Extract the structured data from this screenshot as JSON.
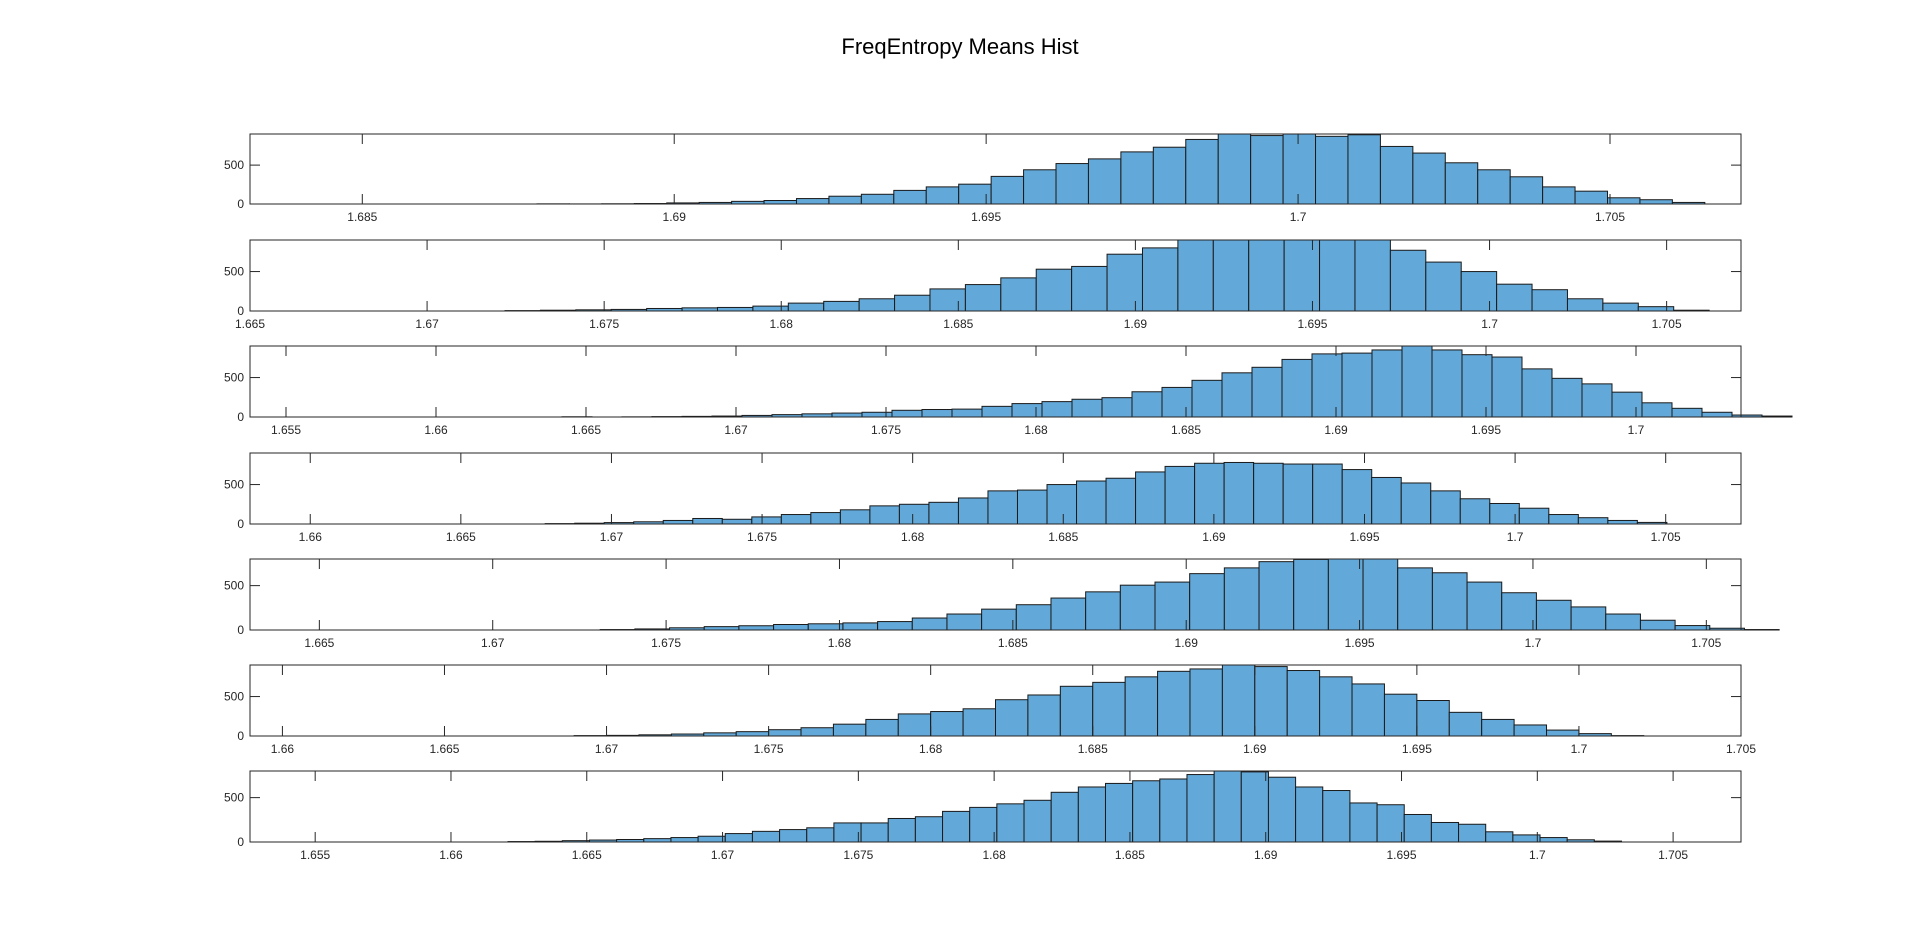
{
  "title": "FreqEntropy Means Hist",
  "colors": {
    "bar_fill": "#62a8d8",
    "bar_edge": "#1a1a1a",
    "axis": "#262626"
  },
  "chart_data": [
    {
      "type": "bar",
      "title": "",
      "xlabel": "",
      "ylabel": "",
      "xlim": [
        1.6832,
        1.7071
      ],
      "ylim": [
        0,
        900
      ],
      "xticks": [
        "1.685",
        "1.69",
        "1.695",
        "1.7",
        "1.705"
      ],
      "xtick_values": [
        1.685,
        1.69,
        1.695,
        1.7,
        1.705
      ],
      "yticks": [
        "0",
        "500"
      ],
      "ytick_values": [
        0,
        500
      ],
      "bin_start": 1.6878,
      "bin_width": 0.00052,
      "values": [
        2,
        1,
        3,
        6,
        14,
        20,
        34,
        45,
        70,
        100,
        125,
        175,
        220,
        255,
        355,
        440,
        520,
        580,
        670,
        730,
        830,
        900,
        880,
        900,
        870,
        890,
        740,
        655,
        530,
        440,
        350,
        220,
        165,
        80,
        55,
        20
      ]
    },
    {
      "type": "bar",
      "title": "",
      "xlabel": "",
      "ylabel": "",
      "xlim": [
        1.665,
        1.7071
      ],
      "ylim": [
        0,
        900
      ],
      "xticks": [
        "1.665",
        "1.67",
        "1.675",
        "1.68",
        "1.685",
        "1.69",
        "1.695",
        "1.7",
        "1.705"
      ],
      "xtick_values": [
        1.665,
        1.67,
        1.675,
        1.68,
        1.685,
        1.69,
        1.695,
        1.7,
        1.705
      ],
      "yticks": [
        "0",
        "500"
      ],
      "ytick_values": [
        0,
        500
      ],
      "bin_start": 1.6722,
      "bin_width": 0.001,
      "values": [
        5,
        10,
        15,
        20,
        32,
        40,
        45,
        62,
        100,
        122,
        155,
        200,
        280,
        335,
        420,
        530,
        565,
        720,
        800,
        900,
        920,
        960,
        940,
        950,
        900,
        770,
        620,
        500,
        340,
        270,
        155,
        100,
        55,
        10
      ]
    },
    {
      "type": "bar",
      "title": "",
      "xlabel": "",
      "ylabel": "",
      "xlim": [
        1.6538,
        1.7035
      ],
      "ylim": [
        0,
        900
      ],
      "xticks": [
        "1.655",
        "1.66",
        "1.665",
        "1.67",
        "1.675",
        "1.68",
        "1.685",
        "1.69",
        "1.695",
        "1.7"
      ],
      "xtick_values": [
        1.655,
        1.66,
        1.665,
        1.67,
        1.675,
        1.68,
        1.685,
        1.69,
        1.695,
        1.7
      ],
      "yticks": [
        "0",
        "500"
      ],
      "ytick_values": [
        0,
        500
      ],
      "bin_start": 1.6642,
      "bin_width": 0.001,
      "values": [
        3,
        0,
        2,
        5,
        8,
        12,
        20,
        30,
        40,
        50,
        60,
        85,
        95,
        100,
        135,
        170,
        195,
        225,
        245,
        320,
        375,
        465,
        560,
        630,
        730,
        800,
        810,
        850,
        900,
        850,
        790,
        760,
        610,
        490,
        420,
        315,
        180,
        110,
        60,
        25,
        12
      ]
    },
    {
      "type": "bar",
      "title": "",
      "xlabel": "",
      "ylabel": "",
      "xlim": [
        1.658,
        1.7075
      ],
      "ylim": [
        0,
        900
      ],
      "xticks": [
        "1.66",
        "1.665",
        "1.67",
        "1.675",
        "1.68",
        "1.685",
        "1.69",
        "1.695",
        "1.7",
        "1.705"
      ],
      "xtick_values": [
        1.66,
        1.665,
        1.67,
        1.675,
        1.68,
        1.685,
        1.69,
        1.695,
        1.7,
        1.705
      ],
      "yticks": [
        "0",
        "500"
      ],
      "ytick_values": [
        0,
        500
      ],
      "bin_start": 1.6678,
      "bin_width": 0.00098,
      "values": [
        5,
        10,
        18,
        28,
        45,
        70,
        60,
        90,
        120,
        145,
        180,
        230,
        250,
        275,
        330,
        420,
        430,
        500,
        545,
        580,
        660,
        730,
        770,
        780,
        770,
        760,
        760,
        690,
        590,
        520,
        420,
        320,
        260,
        200,
        120,
        80,
        45,
        20
      ]
    },
    {
      "type": "bar",
      "title": "",
      "xlabel": "",
      "ylabel": "",
      "xlim": [
        1.663,
        1.706
      ],
      "ylim": [
        0,
        800
      ],
      "xticks": [
        "1.665",
        "1.67",
        "1.675",
        "1.68",
        "1.685",
        "1.69",
        "1.695",
        "1.7",
        "1.705"
      ],
      "xtick_values": [
        1.665,
        1.67,
        1.675,
        1.68,
        1.685,
        1.69,
        1.695,
        1.7,
        1.705
      ],
      "yticks": [
        "0",
        "500"
      ],
      "ytick_values": [
        0,
        500
      ],
      "bin_start": 1.6731,
      "bin_width": 0.001,
      "values": [
        5,
        12,
        25,
        38,
        48,
        62,
        70,
        80,
        95,
        135,
        180,
        235,
        285,
        360,
        430,
        505,
        540,
        635,
        700,
        770,
        795,
        800,
        800,
        700,
        645,
        540,
        420,
        335,
        260,
        180,
        110,
        50,
        20,
        5
      ]
    },
    {
      "type": "bar",
      "title": "",
      "xlabel": "",
      "ylabel": "",
      "xlim": [
        1.659,
        1.705
      ],
      "ylim": [
        0,
        900
      ],
      "xticks": [
        "1.66",
        "1.665",
        "1.67",
        "1.675",
        "1.68",
        "1.685",
        "1.69",
        "1.695",
        "1.7",
        "1.705"
      ],
      "xtick_values": [
        1.66,
        1.665,
        1.67,
        1.675,
        1.68,
        1.685,
        1.69,
        1.695,
        1.7,
        1.705
      ],
      "yticks": [
        "0",
        "500"
      ],
      "ytick_values": [
        0,
        500
      ],
      "bin_start": 1.669,
      "bin_width": 0.001,
      "values": [
        5,
        8,
        15,
        25,
        40,
        55,
        80,
        105,
        150,
        210,
        280,
        310,
        345,
        460,
        520,
        630,
        680,
        750,
        820,
        850,
        900,
        880,
        830,
        750,
        660,
        530,
        450,
        300,
        210,
        140,
        75,
        30,
        5
      ]
    },
    {
      "type": "bar",
      "title": "",
      "xlabel": "",
      "ylabel": "",
      "xlim": [
        1.6526,
        1.7075
      ],
      "ylim": [
        0,
        800
      ],
      "xticks": [
        "1.655",
        "1.66",
        "1.665",
        "1.67",
        "1.675",
        "1.68",
        "1.685",
        "1.69",
        "1.695",
        "1.7",
        "1.705"
      ],
      "xtick_values": [
        1.655,
        1.66,
        1.665,
        1.67,
        1.675,
        1.68,
        1.685,
        1.69,
        1.695,
        1.7,
        1.705
      ],
      "yticks": [
        "0",
        "500"
      ],
      "ytick_values": [
        0,
        500
      ],
      "bin_start": 1.6621,
      "bin_width": 0.001,
      "values": [
        5,
        8,
        15,
        22,
        28,
        38,
        50,
        65,
        95,
        120,
        140,
        160,
        215,
        215,
        265,
        285,
        345,
        390,
        430,
        470,
        560,
        620,
        660,
        690,
        710,
        760,
        800,
        790,
        730,
        620,
        580,
        440,
        420,
        310,
        220,
        200,
        115,
        80,
        50,
        25,
        10
      ]
    }
  ]
}
